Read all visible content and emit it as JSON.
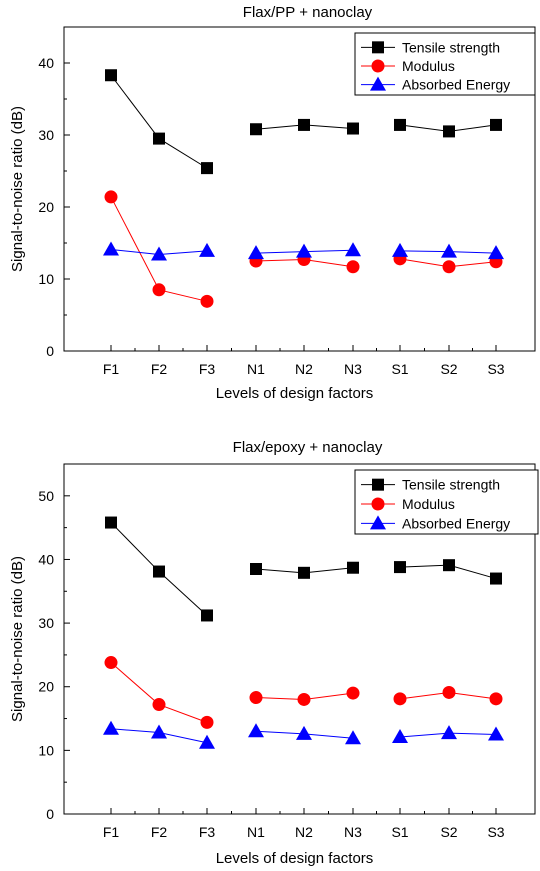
{
  "chart_data": [
    {
      "type": "line",
      "title": "Flax/PP + nanoclay",
      "xlabel": "Levels of design factors",
      "ylabel": "Signal-to-noise ratio (dB)",
      "ylim": [
        0,
        45
      ],
      "yticks": [
        0,
        10,
        20,
        30,
        40
      ],
      "categories": [
        "F1",
        "F2",
        "F3",
        "N1",
        "N2",
        "N3",
        "S1",
        "S2",
        "S3"
      ],
      "groups": [
        [
          0,
          1,
          2
        ],
        [
          3,
          4,
          5
        ],
        [
          6,
          7,
          8
        ]
      ],
      "legend_position": "top-right",
      "series": [
        {
          "name": "Tensile strength",
          "color": "#000000",
          "line_color": "#000000",
          "marker": "square",
          "values": [
            38.3,
            29.5,
            25.4,
            30.8,
            31.4,
            30.9,
            31.4,
            30.5,
            31.4
          ]
        },
        {
          "name": "Modulus",
          "color": "#ff0000",
          "line_color": "#ff0000",
          "marker": "circle",
          "values": [
            21.4,
            8.5,
            6.9,
            12.5,
            12.7,
            11.7,
            12.8,
            11.7,
            12.4
          ]
        },
        {
          "name": "Absorbed Energy",
          "color": "#0000ff",
          "line_color": "#0000ff",
          "marker": "triangle",
          "values": [
            14.1,
            13.4,
            13.9,
            13.6,
            13.8,
            14.0,
            13.9,
            13.8,
            13.6
          ]
        }
      ]
    },
    {
      "type": "line",
      "title": "Flax/epoxy + nanoclay",
      "xlabel": "Levels of design factors",
      "ylabel": "Signal-to-noise ratio (dB)",
      "ylim": [
        0,
        55
      ],
      "yticks": [
        0,
        10,
        20,
        30,
        40,
        50
      ],
      "categories": [
        "F1",
        "F2",
        "F3",
        "N1",
        "N2",
        "N3",
        "S1",
        "S2",
        "S3"
      ],
      "groups": [
        [
          0,
          1,
          2
        ],
        [
          3,
          4,
          5
        ],
        [
          6,
          7,
          8
        ]
      ],
      "legend_position": "top-right",
      "series": [
        {
          "name": "Tensile strength",
          "color": "#000000",
          "line_color": "#000000",
          "marker": "square",
          "values": [
            45.8,
            38.1,
            31.2,
            38.5,
            37.9,
            38.7,
            38.8,
            39.1,
            37.0
          ]
        },
        {
          "name": "Modulus",
          "color": "#ff0000",
          "line_color": "#ff0000",
          "marker": "circle",
          "values": [
            23.8,
            17.2,
            14.4,
            18.3,
            18.0,
            19.0,
            18.1,
            19.1,
            18.1
          ]
        },
        {
          "name": "Absorbed Energy",
          "color": "#0000ff",
          "line_color": "#0000ff",
          "marker": "triangle",
          "values": [
            13.4,
            12.8,
            11.2,
            13.0,
            12.6,
            11.9,
            12.1,
            12.7,
            12.5
          ]
        }
      ]
    }
  ]
}
